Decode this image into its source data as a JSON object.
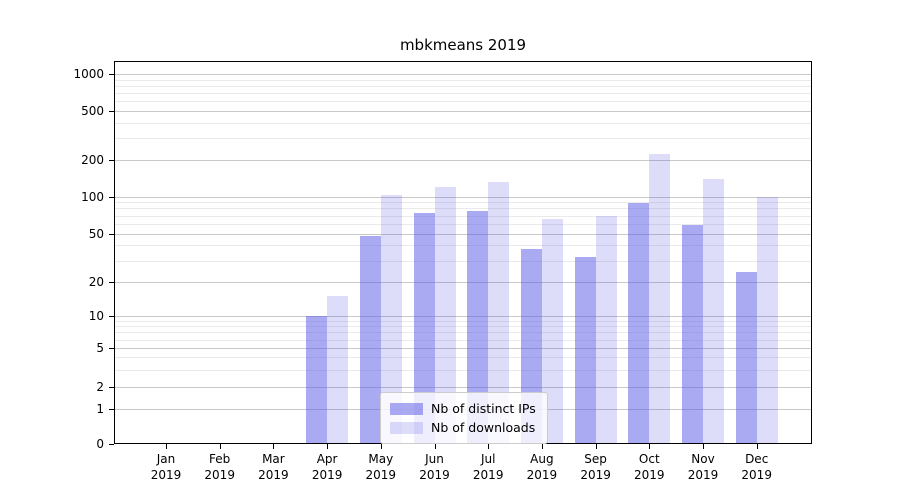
{
  "title": "mbkmeans 2019",
  "colors": {
    "bar_base": "#5555e6",
    "grid_major": "#c9c9c9",
    "grid_minor": "#eaeaea",
    "axis": "#000000",
    "legend_border": "#cccccc"
  },
  "chart_data": {
    "type": "bar",
    "title": "mbkmeans 2019",
    "categories": [
      "Jan 2019",
      "Feb 2019",
      "Mar 2019",
      "Apr 2019",
      "May 2019",
      "Jun 2019",
      "Jul 2019",
      "Aug 2019",
      "Sep 2019",
      "Oct 2019",
      "Nov 2019",
      "Dec 2019"
    ],
    "series": [
      {
        "name": "Nb of distinct IPs",
        "color": "#5555e6",
        "alpha": 0.5,
        "values": [
          0,
          0,
          0,
          10,
          48,
          74,
          76,
          37,
          32,
          89,
          59,
          24
        ]
      },
      {
        "name": "Nb of downloads",
        "color": "#5555e6",
        "alpha": 0.2,
        "values": [
          0,
          0,
          0,
          15,
          102,
          120,
          130,
          65,
          70,
          220,
          139,
          100
        ]
      }
    ],
    "yscale": "symlog",
    "yticks": [
      0,
      1,
      2,
      5,
      10,
      20,
      50,
      100,
      200,
      500,
      1000
    ],
    "minor_yticks": [
      3,
      4,
      6,
      7,
      8,
      9,
      30,
      40,
      60,
      70,
      80,
      90,
      300,
      400,
      600,
      700,
      800,
      900
    ],
    "ylim": [
      0,
      1200
    ],
    "xlabel": "",
    "ylabel": "",
    "grid": "major+minor",
    "legend_position": "lower center"
  }
}
